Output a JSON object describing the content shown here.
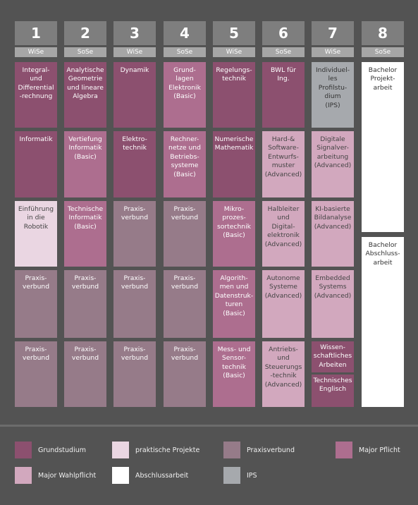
{
  "types": {
    "grund": {
      "label": "Grundstudium",
      "color": "#8c506f"
    },
    "praktik": {
      "label": "praktische Projekte",
      "color": "#ead6e2"
    },
    "praxis": {
      "label": "Praxisverbund",
      "color": "#967b89"
    },
    "pflicht": {
      "label": "Major Pflicht",
      "color": "#ad6e8f"
    },
    "wahl": {
      "label": "Major Wahlpflicht",
      "color": "#d2a8be"
    },
    "abschl": {
      "label": "Abschlussarbeit",
      "color": "#ffffff"
    },
    "ips": {
      "label": "IPS",
      "color": "#a6a9ad"
    }
  },
  "semesters": [
    {
      "number": "1",
      "term": "WiSe",
      "modules": [
        {
          "label": "Integral-\nund\nDifferential\n-rechnung",
          "type": "grund"
        },
        {
          "label": "Informatik",
          "type": "grund"
        },
        {
          "label": "Einführung\nin die\nRobotik",
          "type": "praktik"
        },
        {
          "label": "Praxis-\nverbund",
          "type": "praxis"
        },
        {
          "label": "Praxis-\nverbund",
          "type": "praxis"
        }
      ]
    },
    {
      "number": "2",
      "term": "SoSe",
      "modules": [
        {
          "label": "Analytische\nGeometrie\nund lineare\nAlgebra",
          "type": "grund"
        },
        {
          "label": "Vertiefung\nInformatik\n(Basic)",
          "type": "pflicht"
        },
        {
          "label": "Technische\nInformatik\n(Basic)",
          "type": "pflicht"
        },
        {
          "label": "Praxis-\nverbund",
          "type": "praxis"
        },
        {
          "label": "Praxis-\nverbund",
          "type": "praxis"
        }
      ]
    },
    {
      "number": "3",
      "term": "WiSe",
      "modules": [
        {
          "label": "Dynamik",
          "type": "grund"
        },
        {
          "label": "Elektro-\ntechnik",
          "type": "grund"
        },
        {
          "label": "Praxis-\nverbund",
          "type": "praxis"
        },
        {
          "label": "Praxis-\nverbund",
          "type": "praxis"
        },
        {
          "label": "Praxis-\nverbund",
          "type": "praxis"
        }
      ]
    },
    {
      "number": "4",
      "term": "SoSe",
      "modules": [
        {
          "label": "Grund-\nlagen\nElektronik\n(Basic)",
          "type": "pflicht"
        },
        {
          "label": "Rechner-\nnetze und\nBetriebs-\nsysteme\n(Basic)",
          "type": "pflicht"
        },
        {
          "label": "Praxis-\nverbund",
          "type": "praxis"
        },
        {
          "label": "Praxis-\nverbund",
          "type": "praxis"
        },
        {
          "label": "Praxis-\nverbund",
          "type": "praxis"
        }
      ]
    },
    {
      "number": "5",
      "term": "WiSe",
      "modules": [
        {
          "label": "Regelungs-\ntechnik",
          "type": "grund"
        },
        {
          "label": "Numerische\nMathematik",
          "type": "grund"
        },
        {
          "label": "Mikro-\nprozes-\nsortechnik\n(Basic)",
          "type": "pflicht"
        },
        {
          "label": "Algorith-\nmen und\nDatenstruk-\nturen\n(Basic)",
          "type": "pflicht"
        },
        {
          "label": "Mess- und\nSensor-\ntechnik\n(Basic)",
          "type": "pflicht"
        }
      ]
    },
    {
      "number": "6",
      "term": "SoSe",
      "modules": [
        {
          "label": "BWL für\nIng.",
          "type": "grund"
        },
        {
          "label": "Hard-&\nSoftware-\nEntwurfs-\nmuster\n(Advanced)",
          "type": "wahl"
        },
        {
          "label": "Halbleiter\nund\nDigital-\nelektronik\n(Advanced)",
          "type": "wahl"
        },
        {
          "label": "Autonome\nSysteme\n(Advanced)",
          "type": "wahl"
        },
        {
          "label": "Antriebs-\nund\nSteuerungs\n-technik\n(Advanced)",
          "type": "wahl"
        }
      ]
    },
    {
      "number": "7",
      "term": "WiSe",
      "modules": [
        {
          "label": "Individuel-\nles\nProfilstu-\ndium\n(IPS)",
          "type": "ips"
        },
        {
          "label": "Digitale\nSignalver-\narbeitung\n(Advanced)",
          "type": "wahl"
        },
        {
          "label": "KI-basierte\nBildanalyse\n(Advanced)",
          "type": "wahl"
        },
        {
          "label": "Embedded\nSystems\n(Advanced)",
          "type": "wahl"
        },
        {
          "label": "Wissen-\nschaftliches\nArbeiten",
          "type": "grund"
        },
        {
          "label": "Technisches\nEnglisch",
          "type": "grund"
        }
      ]
    },
    {
      "number": "8",
      "term": "SoSe",
      "modules": [
        {
          "label": "Bachelor\nProjekt-\narbeit",
          "type": "abschl"
        },
        {
          "label": "Bachelor\nAbschluss-\narbeit",
          "type": "abschl"
        }
      ]
    }
  ]
}
